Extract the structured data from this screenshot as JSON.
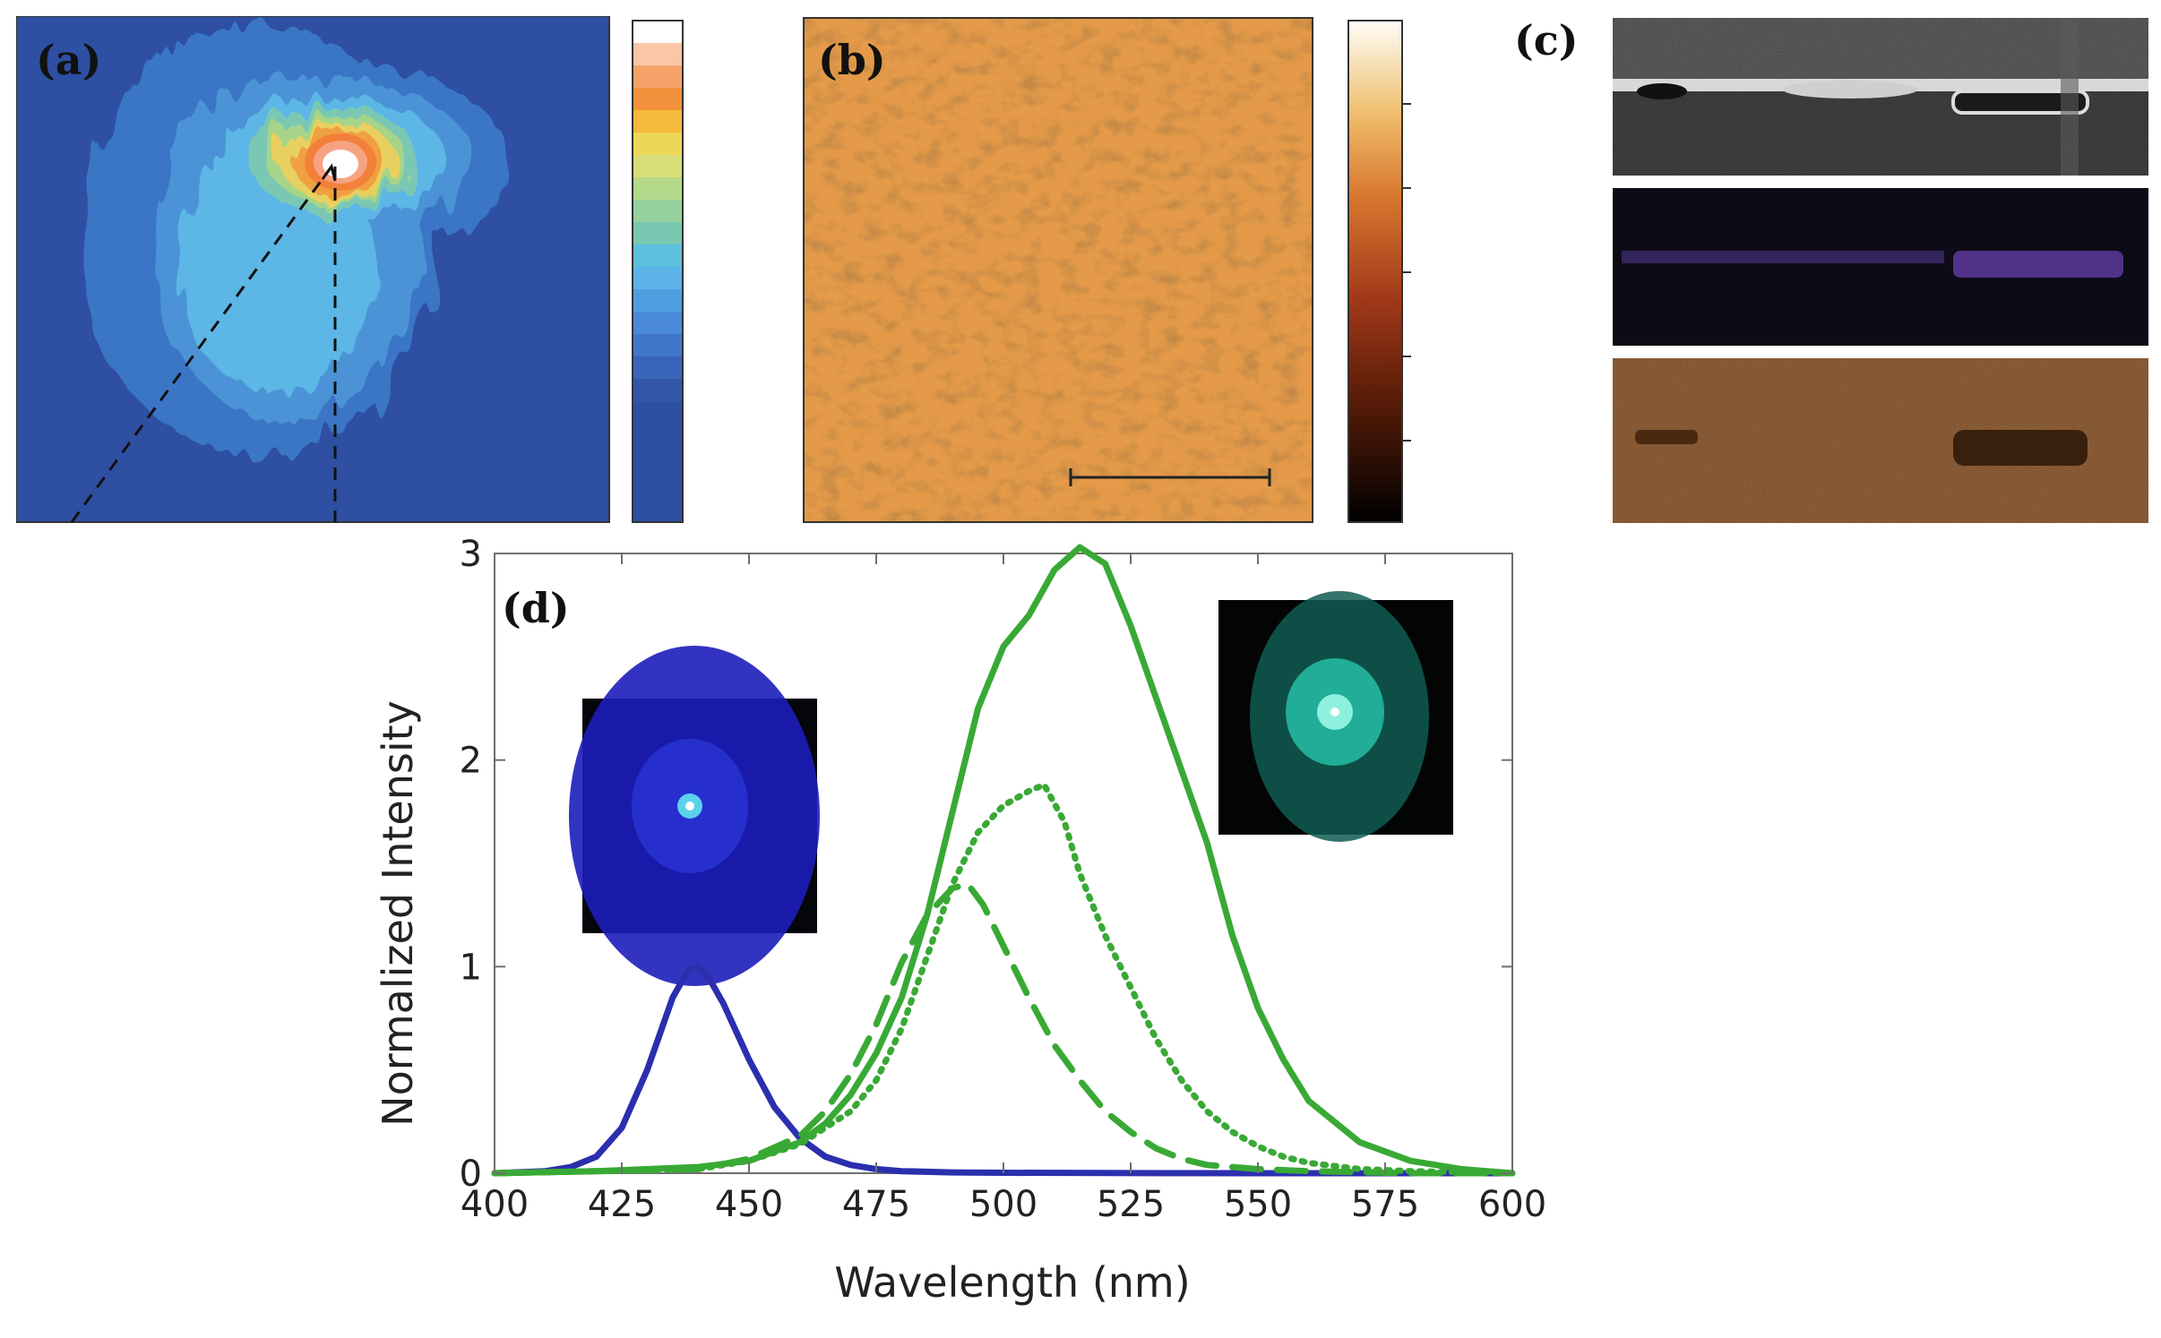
{
  "panels": {
    "a": {
      "label": "(a)"
    },
    "b": {
      "label": "(b)"
    },
    "c": {
      "label": "(c)"
    },
    "d": {
      "label": "(d)"
    }
  },
  "colors": {
    "blue_series": "#2b2fae",
    "green_series": "#39a935",
    "axis": "#6e6e6e"
  },
  "chart_data": {
    "type": "line",
    "xlabel": "Wavelength (nm)",
    "ylabel": "Normalized Intensity",
    "xlim": [
      400,
      600
    ],
    "ylim": [
      0,
      3
    ],
    "xticks": [
      400,
      425,
      450,
      475,
      500,
      525,
      550,
      575,
      600
    ],
    "yticks": [
      0,
      1,
      2,
      3
    ],
    "series": [
      {
        "name": "blue",
        "color": "#2b2fae",
        "style": "solid",
        "x": [
          400,
          410,
          415,
          420,
          425,
          430,
          435,
          438,
          440,
          442,
          445,
          450,
          455,
          460,
          465,
          470,
          475,
          480,
          490,
          500,
          520,
          550,
          600
        ],
        "y": [
          0,
          0.01,
          0.03,
          0.08,
          0.22,
          0.5,
          0.85,
          0.98,
          1.0,
          0.95,
          0.82,
          0.55,
          0.32,
          0.17,
          0.08,
          0.04,
          0.02,
          0.01,
          0.004,
          0.002,
          0.001,
          0,
          0
        ]
      },
      {
        "name": "green solid",
        "color": "#39a935",
        "style": "solid",
        "x": [
          400,
          420,
          440,
          450,
          460,
          465,
          470,
          475,
          480,
          485,
          490,
          495,
          500,
          505,
          510,
          515,
          520,
          525,
          530,
          535,
          540,
          545,
          550,
          555,
          560,
          570,
          580,
          590,
          600
        ],
        "y": [
          0,
          0.01,
          0.03,
          0.06,
          0.15,
          0.24,
          0.38,
          0.58,
          0.85,
          1.25,
          1.75,
          2.25,
          2.55,
          2.7,
          2.92,
          3.03,
          2.95,
          2.65,
          2.3,
          1.95,
          1.6,
          1.15,
          0.8,
          0.55,
          0.35,
          0.15,
          0.06,
          0.02,
          0
        ]
      },
      {
        "name": "green dotted",
        "color": "#39a935",
        "style": "dotted",
        "x": [
          400,
          440,
          450,
          460,
          470,
          475,
          480,
          485,
          490,
          495,
          500,
          505,
          508,
          512,
          515,
          520,
          525,
          530,
          535,
          540,
          545,
          550,
          555,
          560,
          570,
          580,
          600
        ],
        "y": [
          0,
          0.02,
          0.06,
          0.14,
          0.3,
          0.45,
          0.7,
          1.05,
          1.4,
          1.65,
          1.78,
          1.85,
          1.88,
          1.7,
          1.45,
          1.15,
          0.9,
          0.65,
          0.45,
          0.3,
          0.2,
          0.13,
          0.08,
          0.05,
          0.02,
          0.01,
          0
        ]
      },
      {
        "name": "green dashed",
        "color": "#39a935",
        "style": "dashed",
        "x": [
          400,
          440,
          450,
          460,
          465,
          470,
          475,
          480,
          485,
          490,
          493,
          496,
          500,
          505,
          510,
          515,
          520,
          525,
          530,
          535,
          540,
          550,
          560,
          580,
          600
        ],
        "y": [
          0,
          0.02,
          0.07,
          0.18,
          0.3,
          0.48,
          0.72,
          1.02,
          1.25,
          1.38,
          1.4,
          1.3,
          1.1,
          0.85,
          0.62,
          0.45,
          0.3,
          0.2,
          0.12,
          0.07,
          0.04,
          0.02,
          0.01,
          0,
          0
        ]
      }
    ]
  }
}
